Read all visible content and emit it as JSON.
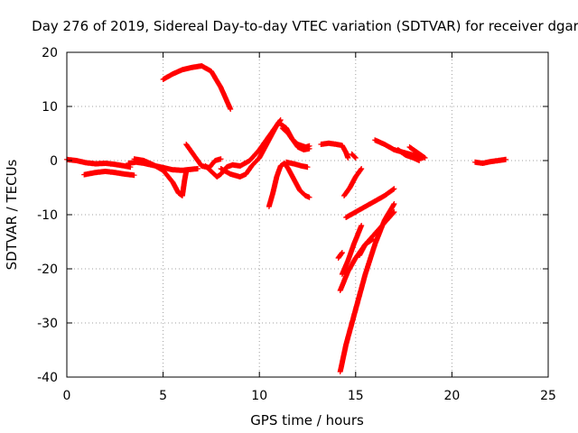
{
  "chart_data": {
    "type": "scatter",
    "title": "Day 276 of 2019, Sidereal Day-to-day VTEC variation (SDTVAR) for receiver dgar",
    "xlabel": "GPS time / hours",
    "ylabel": "SDTVAR / TECUs",
    "xlim": [
      0,
      25
    ],
    "ylim": [
      -40,
      20
    ],
    "x_ticks": [
      0,
      5,
      10,
      15,
      20,
      25
    ],
    "y_ticks": [
      -40,
      -30,
      -20,
      -10,
      0,
      10,
      20
    ],
    "x_tick_labels": [
      "0",
      "5",
      "10",
      "15",
      "20",
      "25"
    ],
    "y_tick_labels": [
      "-40",
      "-30",
      "-20",
      "-10",
      "0",
      "10",
      "20"
    ],
    "grid": true,
    "marker": "+",
    "color": "#ff0000",
    "tracks": [
      {
        "x": [
          0.0,
          0.5,
          1.0,
          1.5,
          2.0,
          2.5,
          3.0,
          3.3
        ],
        "y": [
          0.2,
          0.0,
          -0.4,
          -0.6,
          -0.5,
          -0.7,
          -1.0,
          -1.2
        ]
      },
      {
        "x": [
          0.9,
          1.5,
          2.0,
          2.5,
          3.0,
          3.5
        ],
        "y": [
          -2.6,
          -2.2,
          -2.0,
          -2.2,
          -2.5,
          -2.7
        ]
      },
      {
        "x": [
          3.2,
          3.6,
          4.0,
          4.5,
          5.0,
          5.5,
          6.0,
          6.5,
          6.8
        ],
        "y": [
          -0.5,
          -0.3,
          -0.5,
          -0.9,
          -1.3,
          -1.7,
          -1.8,
          -1.6,
          -1.5
        ]
      },
      {
        "x": [
          3.5,
          4.0,
          4.5,
          5.0,
          5.5,
          5.8,
          6.0,
          6.1,
          6.2
        ],
        "y": [
          0.3,
          0.0,
          -0.8,
          -1.8,
          -4.0,
          -6.0,
          -6.5,
          -4.0,
          -2.0
        ]
      },
      {
        "x": [
          5.0,
          5.5,
          6.0,
          6.5,
          7.0,
          7.5,
          8.0,
          8.5
        ],
        "y": [
          15.0,
          16.0,
          16.8,
          17.2,
          17.5,
          16.5,
          13.5,
          9.5
        ]
      },
      {
        "x": [
          6.2,
          6.5,
          7.0,
          7.4,
          7.7,
          8.0
        ],
        "y": [
          3.0,
          1.5,
          -1.0,
          -1.3,
          0.0,
          0.3
        ]
      },
      {
        "x": [
          7.2,
          7.5,
          7.8,
          8.0,
          8.3,
          8.6,
          9.0,
          9.5,
          10.0,
          10.5,
          11.0,
          11.4,
          11.7,
          12.0,
          12.4,
          12.6
        ],
        "y": [
          -1.0,
          -2.0,
          -3.0,
          -2.5,
          -1.2,
          -0.8,
          -1.0,
          0.0,
          2.0,
          4.5,
          7.0,
          6.0,
          4.0,
          3.0,
          2.5,
          2.7
        ]
      },
      {
        "x": [
          8.0,
          8.5,
          9.0,
          9.3,
          9.6,
          10.0,
          10.3,
          10.6,
          10.9,
          11.1
        ],
        "y": [
          -1.5,
          -2.5,
          -3.0,
          -2.5,
          -1.0,
          0.5,
          2.5,
          4.5,
          6.5,
          7.5
        ]
      },
      {
        "x": [
          10.5,
          10.7,
          10.9,
          11.1,
          11.3,
          11.5,
          11.8,
          12.1,
          12.4,
          12.6
        ],
        "y": [
          -8.5,
          -6.0,
          -3.0,
          -1.0,
          -0.5,
          -1.5,
          -3.5,
          -5.5,
          -6.5,
          -6.8
        ]
      },
      {
        "x": [
          11.2,
          11.5,
          11.8,
          12.0,
          12.3,
          12.6
        ],
        "y": [
          6.0,
          5.0,
          3.5,
          2.5,
          2.0,
          2.2
        ]
      },
      {
        "x": [
          11.4,
          11.8,
          12.2,
          12.5
        ],
        "y": [
          -0.3,
          -0.6,
          -1.0,
          -1.2
        ]
      },
      {
        "x": [
          13.2,
          13.6,
          14.0,
          14.3,
          14.5,
          14.6
        ],
        "y": [
          3.0,
          3.2,
          3.0,
          2.8,
          1.5,
          0.5
        ]
      },
      {
        "x": [
          14.4,
          14.7,
          15.0,
          15.3
        ],
        "y": [
          -6.5,
          -5.0,
          -3.0,
          -1.5
        ]
      },
      {
        "x": [
          14.8,
          15.0
        ],
        "y": [
          1.2,
          0.5
        ]
      },
      {
        "x": [
          14.5,
          15.0,
          15.5,
          16.0,
          16.5,
          17.0
        ],
        "y": [
          -10.5,
          -9.5,
          -8.5,
          -7.5,
          -6.5,
          -5.2
        ]
      },
      {
        "x": [
          14.2,
          14.5,
          15.0,
          15.5,
          16.0,
          16.5,
          17.0
        ],
        "y": [
          -39.0,
          -34.0,
          -27.5,
          -21.0,
          -15.5,
          -11.0,
          -8.0
        ]
      },
      {
        "x": [
          14.2,
          14.6,
          15.0,
          15.5,
          16.0,
          16.5,
          17.0
        ],
        "y": [
          -24.0,
          -20.5,
          -18.0,
          -15.5,
          -13.5,
          -11.5,
          -9.5
        ]
      },
      {
        "x": [
          14.3,
          14.6,
          14.9,
          15.3
        ],
        "y": [
          -21.0,
          -18.5,
          -15.5,
          -12.0
        ]
      },
      {
        "x": [
          14.1,
          14.3
        ],
        "y": [
          -18.0,
          -17.0
        ]
      },
      {
        "x": [
          15.2,
          15.5,
          15.9
        ],
        "y": [
          -17.5,
          -15.5,
          -14.5
        ]
      },
      {
        "x": [
          16.0,
          16.5,
          17.0,
          17.5,
          18.0,
          18.5
        ],
        "y": [
          3.8,
          3.0,
          2.0,
          1.5,
          1.0,
          0.5
        ]
      },
      {
        "x": [
          17.2,
          17.6,
          18.0,
          18.3
        ],
        "y": [
          2.0,
          1.0,
          0.5,
          0.0
        ]
      },
      {
        "x": [
          17.8,
          18.2,
          18.6
        ],
        "y": [
          2.5,
          1.5,
          0.5
        ]
      },
      {
        "x": [
          21.2,
          21.6,
          22.0,
          22.4,
          22.8
        ],
        "y": [
          -0.3,
          -0.5,
          -0.2,
          0.0,
          0.2
        ]
      }
    ]
  }
}
